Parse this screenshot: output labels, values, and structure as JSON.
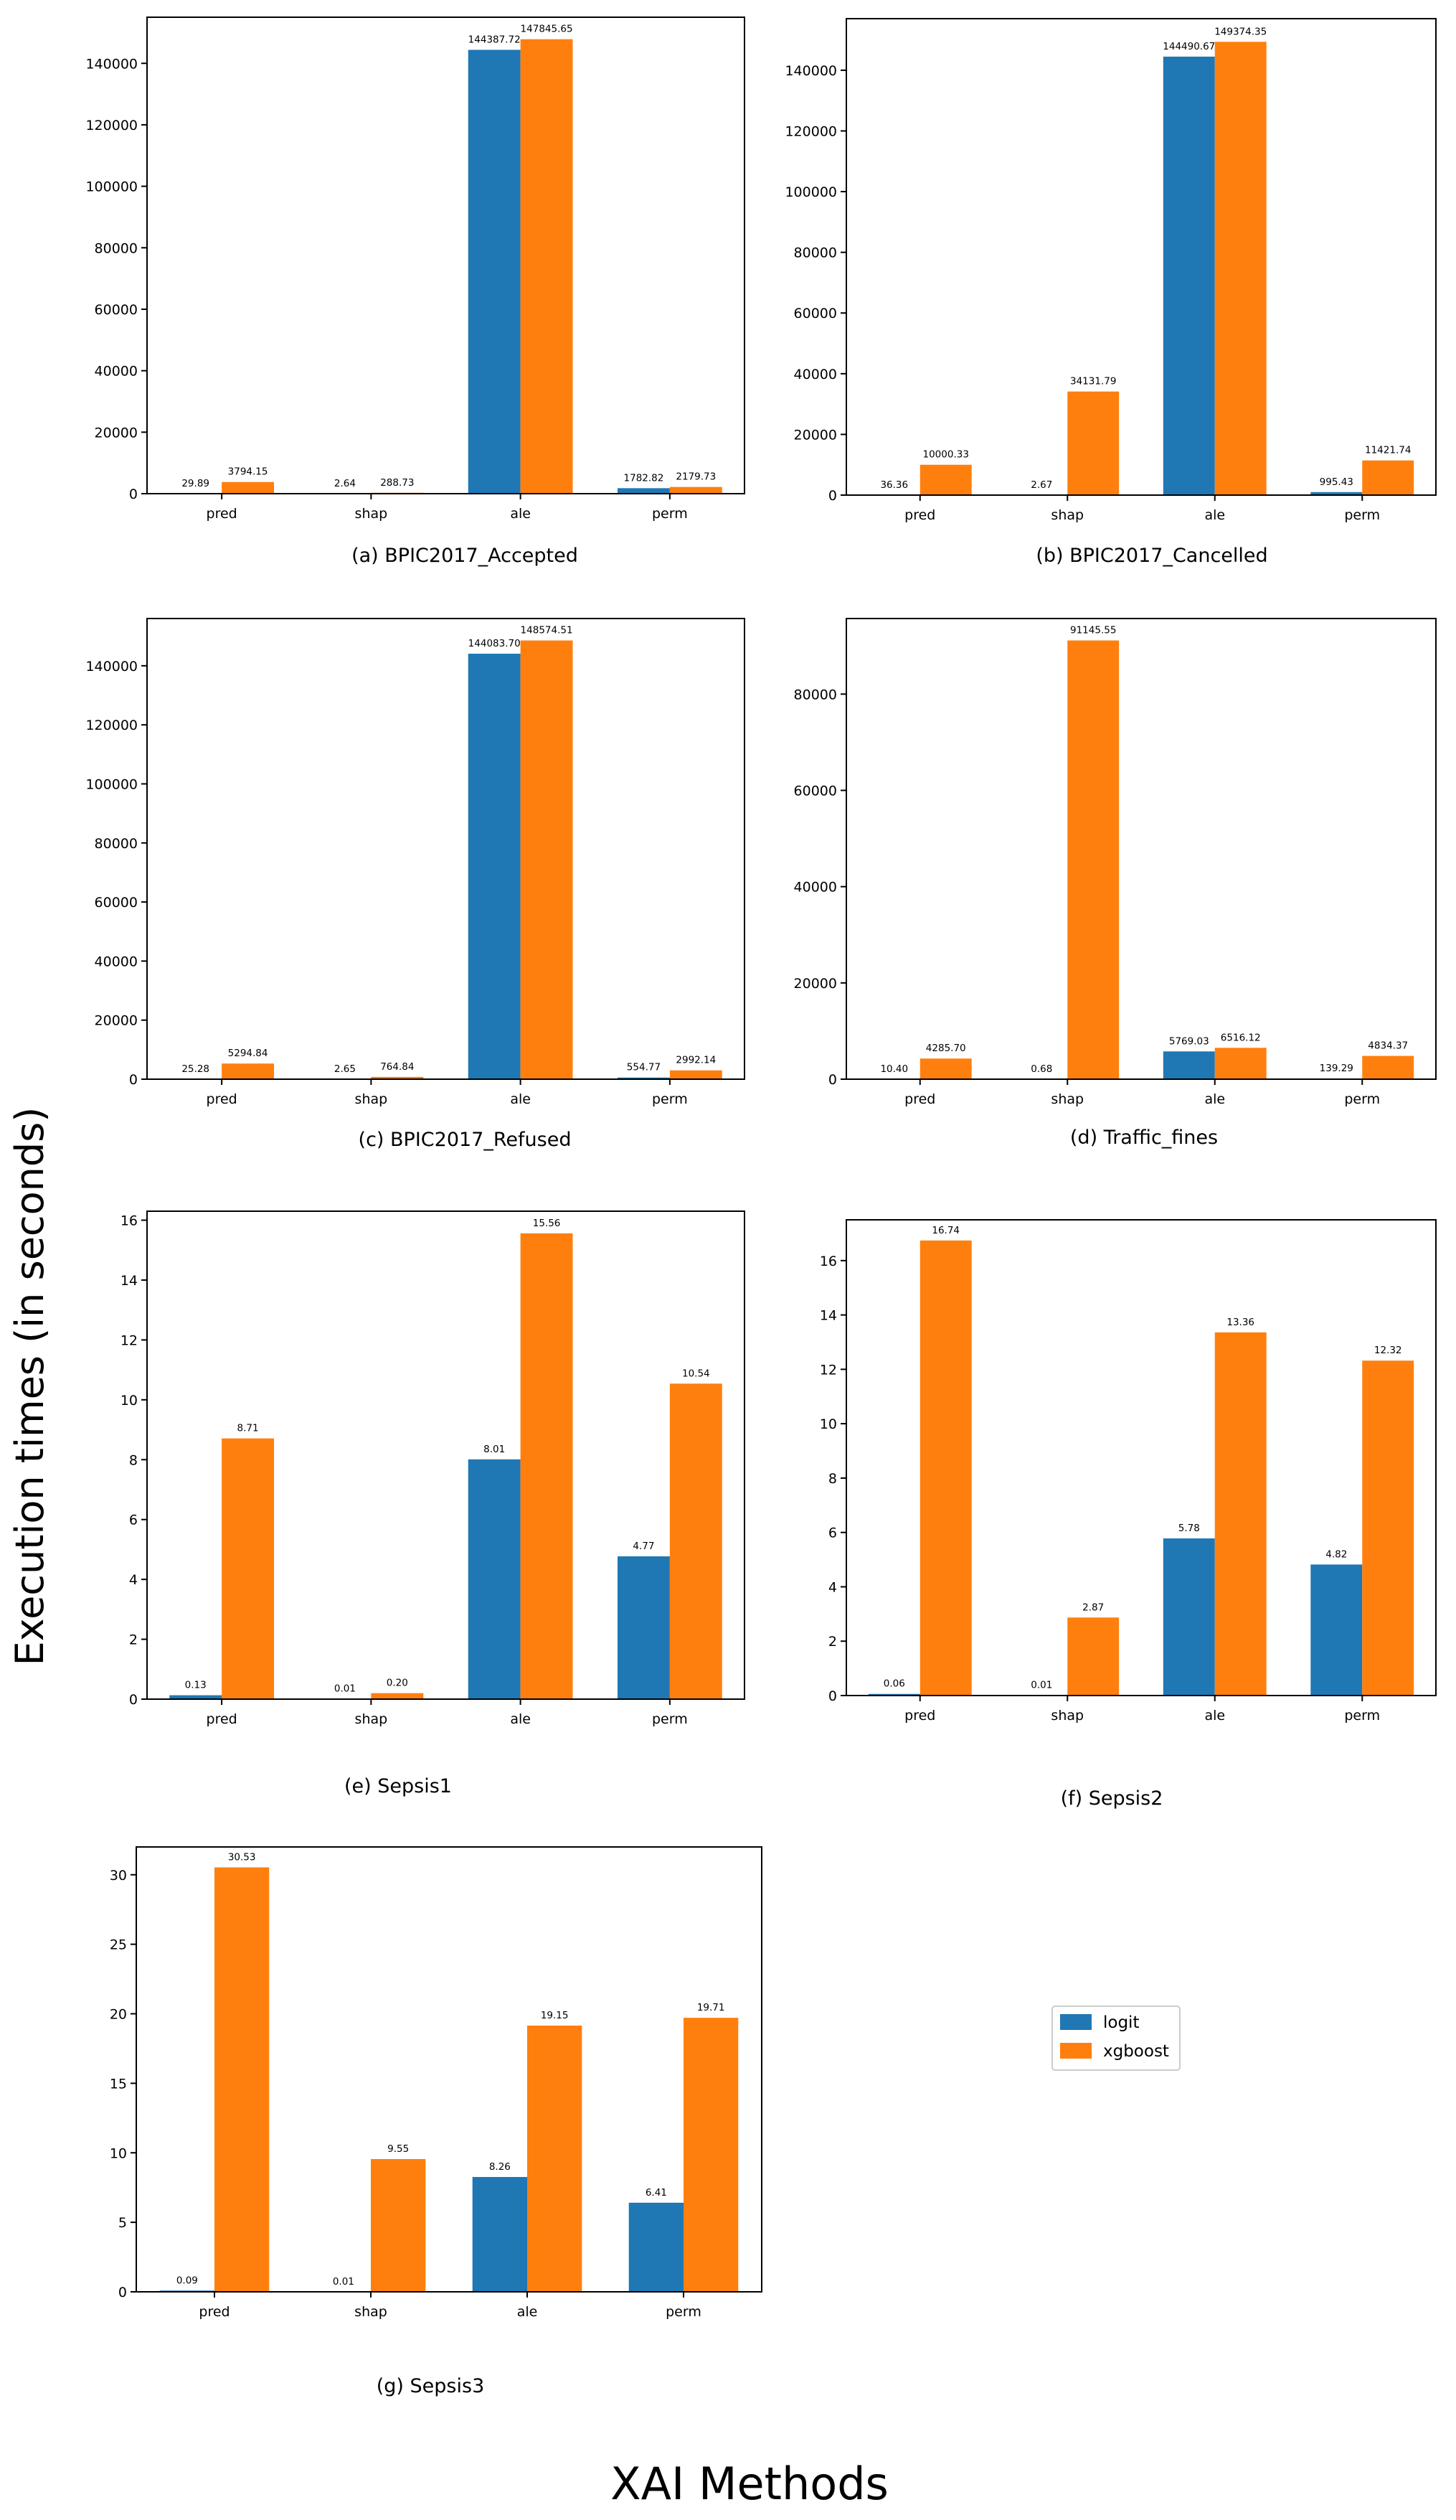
{
  "figure": {
    "ylabel": "Execution times (in seconds)",
    "xlabel": "XAI Methods",
    "legend": [
      {
        "name": "logit",
        "color": "#1f77b4"
      },
      {
        "name": "xgboost",
        "color": "#ff7f0e"
      }
    ]
  },
  "chart_data": [
    {
      "type": "bar",
      "caption": "(a) BPIC2017_Accepted",
      "categories": [
        "pred",
        "shap",
        "ale",
        "perm"
      ],
      "series": [
        {
          "name": "logit",
          "values": [
            29.89,
            2.64,
            144387.72,
            1782.82
          ],
          "labels": [
            "29.89",
            "2.64",
            "144387.72",
            "1782.82"
          ]
        },
        {
          "name": "xgboost",
          "values": [
            3794.15,
            288.73,
            147845.65,
            2179.73
          ],
          "labels": [
            "3794.15",
            "288.73",
            "147845.65",
            "2179.73"
          ]
        }
      ],
      "ylim": [
        0,
        155000
      ],
      "yticks": [
        0,
        20000,
        40000,
        60000,
        80000,
        100000,
        120000,
        140000
      ]
    },
    {
      "type": "bar",
      "caption": "(b) BPIC2017_Cancelled",
      "categories": [
        "pred",
        "shap",
        "ale",
        "perm"
      ],
      "series": [
        {
          "name": "logit",
          "values": [
            36.36,
            2.67,
            144490.67,
            995.43
          ],
          "labels": [
            "36.36",
            "2.67",
            "144490.67",
            "995.43"
          ]
        },
        {
          "name": "xgboost",
          "values": [
            10000.33,
            34131.79,
            149374.35,
            11421.74
          ],
          "labels": [
            "10000.33",
            "34131.79",
            "149374.35",
            "11421.74"
          ]
        }
      ],
      "ylim": [
        0,
        157000
      ],
      "yticks": [
        0,
        20000,
        40000,
        60000,
        80000,
        100000,
        120000,
        140000
      ]
    },
    {
      "type": "bar",
      "caption": "(c) BPIC2017_Refused",
      "categories": [
        "pred",
        "shap",
        "ale",
        "perm"
      ],
      "series": [
        {
          "name": "logit",
          "values": [
            25.28,
            2.65,
            144083.7,
            554.77
          ],
          "labels": [
            "25.28",
            "2.65",
            "144083.70",
            "554.77"
          ]
        },
        {
          "name": "xgboost",
          "values": [
            5294.84,
            764.84,
            148574.51,
            2992.14
          ],
          "labels": [
            "5294.84",
            "764.84",
            "148574.51",
            "2992.14"
          ]
        }
      ],
      "ylim": [
        0,
        156000
      ],
      "yticks": [
        0,
        20000,
        40000,
        60000,
        80000,
        100000,
        120000,
        140000
      ]
    },
    {
      "type": "bar",
      "caption": "(d) Traffic_fines",
      "categories": [
        "pred",
        "shap",
        "ale",
        "perm"
      ],
      "series": [
        {
          "name": "logit",
          "values": [
            10.4,
            0.68,
            5769.03,
            139.29
          ],
          "labels": [
            "10.40",
            "0.68",
            "5769.03",
            "139.29"
          ]
        },
        {
          "name": "xgboost",
          "values": [
            4285.7,
            91145.55,
            6516.12,
            4834.37
          ],
          "labels": [
            "4285.70",
            "91145.55",
            "6516.12",
            "4834.37"
          ]
        }
      ],
      "ylim": [
        0,
        95700
      ],
      "yticks": [
        0,
        20000,
        40000,
        60000,
        80000
      ]
    },
    {
      "type": "bar",
      "caption": "(e) Sepsis1",
      "categories": [
        "pred",
        "shap",
        "ale",
        "perm"
      ],
      "series": [
        {
          "name": "logit",
          "values": [
            0.13,
            0.01,
            8.01,
            4.77
          ],
          "labels": [
            "0.13",
            "0.01",
            "8.01",
            "4.77"
          ]
        },
        {
          "name": "xgboost",
          "values": [
            8.71,
            0.2,
            15.56,
            10.54
          ],
          "labels": [
            "8.71",
            "0.20",
            "15.56",
            "10.54"
          ]
        }
      ],
      "ylim": [
        0,
        16.3
      ],
      "yticks": [
        0,
        2,
        4,
        6,
        8,
        10,
        12,
        14,
        16
      ]
    },
    {
      "type": "bar",
      "caption": "(f) Sepsis2",
      "categories": [
        "pred",
        "shap",
        "ale",
        "perm"
      ],
      "series": [
        {
          "name": "logit",
          "values": [
            0.06,
            0.01,
            5.78,
            4.82
          ],
          "labels": [
            "0.06",
            "0.01",
            "5.78",
            "4.82"
          ]
        },
        {
          "name": "xgboost",
          "values": [
            16.74,
            2.87,
            13.36,
            12.32
          ],
          "labels": [
            "16.74",
            "2.87",
            "13.36",
            "12.32"
          ]
        }
      ],
      "ylim": [
        0,
        17.5
      ],
      "yticks": [
        0,
        2,
        4,
        6,
        8,
        10,
        12,
        14,
        16
      ]
    },
    {
      "type": "bar",
      "caption": "(g) Sepsis3",
      "categories": [
        "pred",
        "shap",
        "ale",
        "perm"
      ],
      "series": [
        {
          "name": "logit",
          "values": [
            0.09,
            0.01,
            8.26,
            6.41
          ],
          "labels": [
            "0.09",
            "0.01",
            "8.26",
            "6.41"
          ]
        },
        {
          "name": "xgboost",
          "values": [
            30.53,
            9.55,
            19.15,
            19.71
          ],
          "labels": [
            "30.53",
            "9.55",
            "19.15",
            "19.71"
          ]
        }
      ],
      "ylim": [
        0,
        32.0
      ],
      "yticks": [
        0,
        5,
        10,
        15,
        20,
        25,
        30
      ]
    }
  ]
}
